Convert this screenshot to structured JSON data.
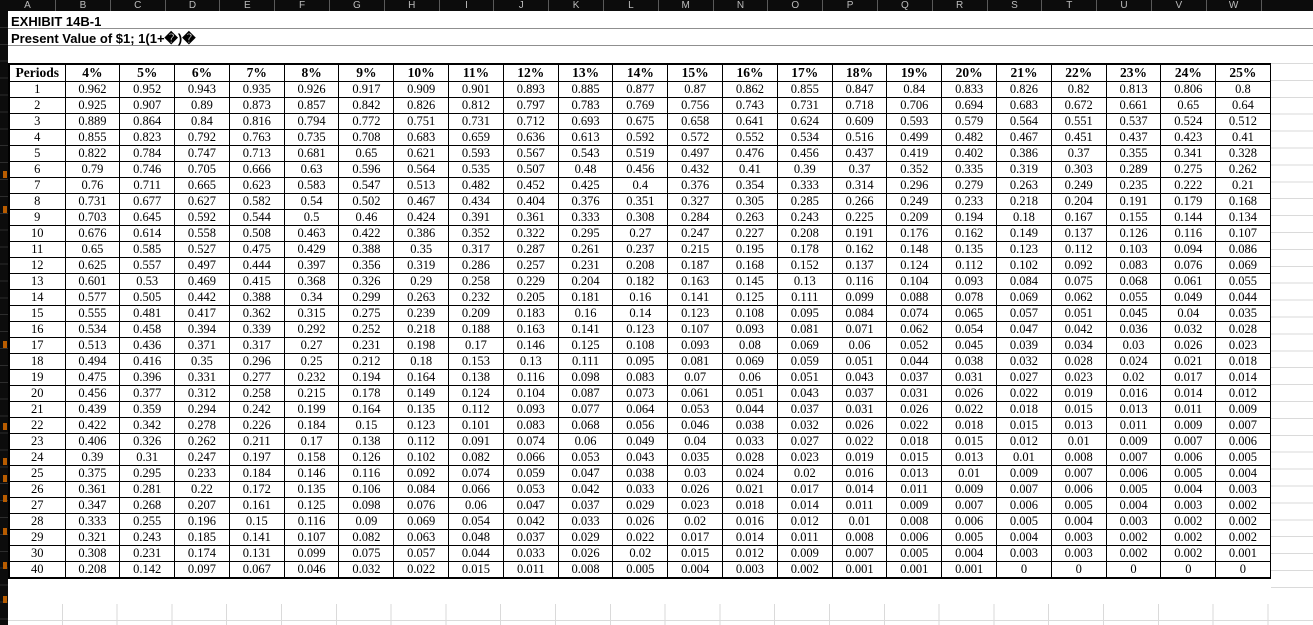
{
  "sheet": {
    "column_letters": [
      "A",
      "B",
      "C",
      "D",
      "E",
      "F",
      "G",
      "H",
      "I",
      "J",
      "K",
      "L",
      "M",
      "N",
      "O",
      "P",
      "Q",
      "R",
      "S",
      "T",
      "U",
      "V",
      "W"
    ],
    "title_line1": "EXHIBIT 14B-1",
    "title_line2": "Present Value of $1; 1(1+�)�"
  },
  "table": {
    "periods_label": "Periods",
    "rate_headers": [
      "4%",
      "5%",
      "6%",
      "7%",
      "8%",
      "9%",
      "10%",
      "11%",
      "12%",
      "13%",
      "14%",
      "15%",
      "16%",
      "17%",
      "18%",
      "19%",
      "20%",
      "21%",
      "22%",
      "23%",
      "24%",
      "25%"
    ],
    "rows": [
      {
        "period": "1",
        "values": [
          "0.962",
          "0.952",
          "0.943",
          "0.935",
          "0.926",
          "0.917",
          "0.909",
          "0.901",
          "0.893",
          "0.885",
          "0.877",
          "0.87",
          "0.862",
          "0.855",
          "0.847",
          "0.84",
          "0.833",
          "0.826",
          "0.82",
          "0.813",
          "0.806",
          "0.8"
        ]
      },
      {
        "period": "2",
        "values": [
          "0.925",
          "0.907",
          "0.89",
          "0.873",
          "0.857",
          "0.842",
          "0.826",
          "0.812",
          "0.797",
          "0.783",
          "0.769",
          "0.756",
          "0.743",
          "0.731",
          "0.718",
          "0.706",
          "0.694",
          "0.683",
          "0.672",
          "0.661",
          "0.65",
          "0.64"
        ]
      },
      {
        "period": "3",
        "values": [
          "0.889",
          "0.864",
          "0.84",
          "0.816",
          "0.794",
          "0.772",
          "0.751",
          "0.731",
          "0.712",
          "0.693",
          "0.675",
          "0.658",
          "0.641",
          "0.624",
          "0.609",
          "0.593",
          "0.579",
          "0.564",
          "0.551",
          "0.537",
          "0.524",
          "0.512"
        ]
      },
      {
        "period": "4",
        "values": [
          "0.855",
          "0.823",
          "0.792",
          "0.763",
          "0.735",
          "0.708",
          "0.683",
          "0.659",
          "0.636",
          "0.613",
          "0.592",
          "0.572",
          "0.552",
          "0.534",
          "0.516",
          "0.499",
          "0.482",
          "0.467",
          "0.451",
          "0.437",
          "0.423",
          "0.41"
        ]
      },
      {
        "period": "5",
        "values": [
          "0.822",
          "0.784",
          "0.747",
          "0.713",
          "0.681",
          "0.65",
          "0.621",
          "0.593",
          "0.567",
          "0.543",
          "0.519",
          "0.497",
          "0.476",
          "0.456",
          "0.437",
          "0.419",
          "0.402",
          "0.386",
          "0.37",
          "0.355",
          "0.341",
          "0.328"
        ]
      },
      {
        "period": "6",
        "values": [
          "0.79",
          "0.746",
          "0.705",
          "0.666",
          "0.63",
          "0.596",
          "0.564",
          "0.535",
          "0.507",
          "0.48",
          "0.456",
          "0.432",
          "0.41",
          "0.39",
          "0.37",
          "0.352",
          "0.335",
          "0.319",
          "0.303",
          "0.289",
          "0.275",
          "0.262"
        ]
      },
      {
        "period": "7",
        "values": [
          "0.76",
          "0.711",
          "0.665",
          "0.623",
          "0.583",
          "0.547",
          "0.513",
          "0.482",
          "0.452",
          "0.425",
          "0.4",
          "0.376",
          "0.354",
          "0.333",
          "0.314",
          "0.296",
          "0.279",
          "0.263",
          "0.249",
          "0.235",
          "0.222",
          "0.21"
        ]
      },
      {
        "period": "8",
        "values": [
          "0.731",
          "0.677",
          "0.627",
          "0.582",
          "0.54",
          "0.502",
          "0.467",
          "0.434",
          "0.404",
          "0.376",
          "0.351",
          "0.327",
          "0.305",
          "0.285",
          "0.266",
          "0.249",
          "0.233",
          "0.218",
          "0.204",
          "0.191",
          "0.179",
          "0.168"
        ]
      },
      {
        "period": "9",
        "values": [
          "0.703",
          "0.645",
          "0.592",
          "0.544",
          "0.5",
          "0.46",
          "0.424",
          "0.391",
          "0.361",
          "0.333",
          "0.308",
          "0.284",
          "0.263",
          "0.243",
          "0.225",
          "0.209",
          "0.194",
          "0.18",
          "0.167",
          "0.155",
          "0.144",
          "0.134"
        ]
      },
      {
        "period": "10",
        "values": [
          "0.676",
          "0.614",
          "0.558",
          "0.508",
          "0.463",
          "0.422",
          "0.386",
          "0.352",
          "0.322",
          "0.295",
          "0.27",
          "0.247",
          "0.227",
          "0.208",
          "0.191",
          "0.176",
          "0.162",
          "0.149",
          "0.137",
          "0.126",
          "0.116",
          "0.107"
        ]
      },
      {
        "period": "11",
        "values": [
          "0.65",
          "0.585",
          "0.527",
          "0.475",
          "0.429",
          "0.388",
          "0.35",
          "0.317",
          "0.287",
          "0.261",
          "0.237",
          "0.215",
          "0.195",
          "0.178",
          "0.162",
          "0.148",
          "0.135",
          "0.123",
          "0.112",
          "0.103",
          "0.094",
          "0.086"
        ]
      },
      {
        "period": "12",
        "values": [
          "0.625",
          "0.557",
          "0.497",
          "0.444",
          "0.397",
          "0.356",
          "0.319",
          "0.286",
          "0.257",
          "0.231",
          "0.208",
          "0.187",
          "0.168",
          "0.152",
          "0.137",
          "0.124",
          "0.112",
          "0.102",
          "0.092",
          "0.083",
          "0.076",
          "0.069"
        ]
      },
      {
        "period": "13",
        "values": [
          "0.601",
          "0.53",
          "0.469",
          "0.415",
          "0.368",
          "0.326",
          "0.29",
          "0.258",
          "0.229",
          "0.204",
          "0.182",
          "0.163",
          "0.145",
          "0.13",
          "0.116",
          "0.104",
          "0.093",
          "0.084",
          "0.075",
          "0.068",
          "0.061",
          "0.055"
        ]
      },
      {
        "period": "14",
        "values": [
          "0.577",
          "0.505",
          "0.442",
          "0.388",
          "0.34",
          "0.299",
          "0.263",
          "0.232",
          "0.205",
          "0.181",
          "0.16",
          "0.141",
          "0.125",
          "0.111",
          "0.099",
          "0.088",
          "0.078",
          "0.069",
          "0.062",
          "0.055",
          "0.049",
          "0.044"
        ]
      },
      {
        "period": "15",
        "values": [
          "0.555",
          "0.481",
          "0.417",
          "0.362",
          "0.315",
          "0.275",
          "0.239",
          "0.209",
          "0.183",
          "0.16",
          "0.14",
          "0.123",
          "0.108",
          "0.095",
          "0.084",
          "0.074",
          "0.065",
          "0.057",
          "0.051",
          "0.045",
          "0.04",
          "0.035"
        ]
      },
      {
        "period": "16",
        "values": [
          "0.534",
          "0.458",
          "0.394",
          "0.339",
          "0.292",
          "0.252",
          "0.218",
          "0.188",
          "0.163",
          "0.141",
          "0.123",
          "0.107",
          "0.093",
          "0.081",
          "0.071",
          "0.062",
          "0.054",
          "0.047",
          "0.042",
          "0.036",
          "0.032",
          "0.028"
        ]
      },
      {
        "period": "17",
        "values": [
          "0.513",
          "0.436",
          "0.371",
          "0.317",
          "0.27",
          "0.231",
          "0.198",
          "0.17",
          "0.146",
          "0.125",
          "0.108",
          "0.093",
          "0.08",
          "0.069",
          "0.06",
          "0.052",
          "0.045",
          "0.039",
          "0.034",
          "0.03",
          "0.026",
          "0.023"
        ]
      },
      {
        "period": "18",
        "values": [
          "0.494",
          "0.416",
          "0.35",
          "0.296",
          "0.25",
          "0.212",
          "0.18",
          "0.153",
          "0.13",
          "0.111",
          "0.095",
          "0.081",
          "0.069",
          "0.059",
          "0.051",
          "0.044",
          "0.038",
          "0.032",
          "0.028",
          "0.024",
          "0.021",
          "0.018"
        ]
      },
      {
        "period": "19",
        "values": [
          "0.475",
          "0.396",
          "0.331",
          "0.277",
          "0.232",
          "0.194",
          "0.164",
          "0.138",
          "0.116",
          "0.098",
          "0.083",
          "0.07",
          "0.06",
          "0.051",
          "0.043",
          "0.037",
          "0.031",
          "0.027",
          "0.023",
          "0.02",
          "0.017",
          "0.014"
        ]
      },
      {
        "period": "20",
        "values": [
          "0.456",
          "0.377",
          "0.312",
          "0.258",
          "0.215",
          "0.178",
          "0.149",
          "0.124",
          "0.104",
          "0.087",
          "0.073",
          "0.061",
          "0.051",
          "0.043",
          "0.037",
          "0.031",
          "0.026",
          "0.022",
          "0.019",
          "0.016",
          "0.014",
          "0.012"
        ]
      },
      {
        "period": "21",
        "values": [
          "0.439",
          "0.359",
          "0.294",
          "0.242",
          "0.199",
          "0.164",
          "0.135",
          "0.112",
          "0.093",
          "0.077",
          "0.064",
          "0.053",
          "0.044",
          "0.037",
          "0.031",
          "0.026",
          "0.022",
          "0.018",
          "0.015",
          "0.013",
          "0.011",
          "0.009"
        ]
      },
      {
        "period": "22",
        "values": [
          "0.422",
          "0.342",
          "0.278",
          "0.226",
          "0.184",
          "0.15",
          "0.123",
          "0.101",
          "0.083",
          "0.068",
          "0.056",
          "0.046",
          "0.038",
          "0.032",
          "0.026",
          "0.022",
          "0.018",
          "0.015",
          "0.013",
          "0.011",
          "0.009",
          "0.007"
        ]
      },
      {
        "period": "23",
        "values": [
          "0.406",
          "0.326",
          "0.262",
          "0.211",
          "0.17",
          "0.138",
          "0.112",
          "0.091",
          "0.074",
          "0.06",
          "0.049",
          "0.04",
          "0.033",
          "0.027",
          "0.022",
          "0.018",
          "0.015",
          "0.012",
          "0.01",
          "0.009",
          "0.007",
          "0.006"
        ]
      },
      {
        "period": "24",
        "values": [
          "0.39",
          "0.31",
          "0.247",
          "0.197",
          "0.158",
          "0.126",
          "0.102",
          "0.082",
          "0.066",
          "0.053",
          "0.043",
          "0.035",
          "0.028",
          "0.023",
          "0.019",
          "0.015",
          "0.013",
          "0.01",
          "0.008",
          "0.007",
          "0.006",
          "0.005"
        ]
      },
      {
        "period": "25",
        "values": [
          "0.375",
          "0.295",
          "0.233",
          "0.184",
          "0.146",
          "0.116",
          "0.092",
          "0.074",
          "0.059",
          "0.047",
          "0.038",
          "0.03",
          "0.024",
          "0.02",
          "0.016",
          "0.013",
          "0.01",
          "0.009",
          "0.007",
          "0.006",
          "0.005",
          "0.004"
        ]
      },
      {
        "period": "26",
        "values": [
          "0.361",
          "0.281",
          "0.22",
          "0.172",
          "0.135",
          "0.106",
          "0.084",
          "0.066",
          "0.053",
          "0.042",
          "0.033",
          "0.026",
          "0.021",
          "0.017",
          "0.014",
          "0.011",
          "0.009",
          "0.007",
          "0.006",
          "0.005",
          "0.004",
          "0.003"
        ]
      },
      {
        "period": "27",
        "values": [
          "0.347",
          "0.268",
          "0.207",
          "0.161",
          "0.125",
          "0.098",
          "0.076",
          "0.06",
          "0.047",
          "0.037",
          "0.029",
          "0.023",
          "0.018",
          "0.014",
          "0.011",
          "0.009",
          "0.007",
          "0.006",
          "0.005",
          "0.004",
          "0.003",
          "0.002"
        ]
      },
      {
        "period": "28",
        "values": [
          "0.333",
          "0.255",
          "0.196",
          "0.15",
          "0.116",
          "0.09",
          "0.069",
          "0.054",
          "0.042",
          "0.033",
          "0.026",
          "0.02",
          "0.016",
          "0.012",
          "0.01",
          "0.008",
          "0.006",
          "0.005",
          "0.004",
          "0.003",
          "0.002",
          "0.002"
        ]
      },
      {
        "period": "29",
        "values": [
          "0.321",
          "0.243",
          "0.185",
          "0.141",
          "0.107",
          "0.082",
          "0.063",
          "0.048",
          "0.037",
          "0.029",
          "0.022",
          "0.017",
          "0.014",
          "0.011",
          "0.008",
          "0.006",
          "0.005",
          "0.004",
          "0.003",
          "0.002",
          "0.002",
          "0.002"
        ]
      },
      {
        "period": "30",
        "values": [
          "0.308",
          "0.231",
          "0.174",
          "0.131",
          "0.099",
          "0.075",
          "0.057",
          "0.044",
          "0.033",
          "0.026",
          "0.02",
          "0.015",
          "0.012",
          "0.009",
          "0.007",
          "0.005",
          "0.004",
          "0.003",
          "0.003",
          "0.002",
          "0.002",
          "0.001"
        ]
      },
      {
        "period": "40",
        "values": [
          "0.208",
          "0.142",
          "0.097",
          "0.067",
          "0.046",
          "0.032",
          "0.022",
          "0.015",
          "0.011",
          "0.008",
          "0.005",
          "0.004",
          "0.003",
          "0.002",
          "0.001",
          "0.001",
          "0.001",
          "0",
          "0",
          "0",
          "0",
          "0"
        ]
      }
    ]
  },
  "colors": {
    "table_border": "#000000",
    "grid_light": "#dadada",
    "title_gridline": "#8f8f8f",
    "header_strip_bg": "#0c0c0c",
    "header_strip_text": "#bdbdbd",
    "row_marker_orange": "#b85c00",
    "text": "#000000",
    "background": "#ffffff"
  }
}
